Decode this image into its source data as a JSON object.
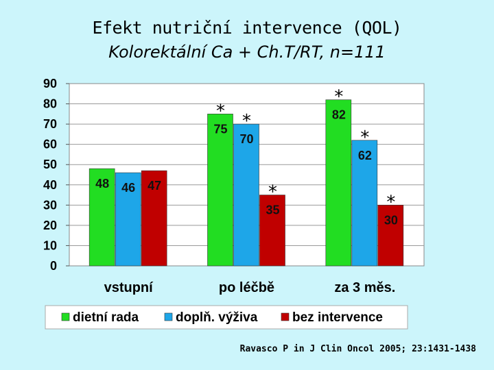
{
  "title": "Efekt nutriční intervence (QOL)",
  "subtitle": "Kolorektální Ca + Ch.T/RT, n=111",
  "citation": "Ravasco P in J Clin Oncol 2005; 23:1431-1438",
  "chart_data": {
    "type": "bar",
    "categories": [
      "vstupní",
      "po léčbě",
      "za 3 měs."
    ],
    "series": [
      {
        "name": "dietní rada",
        "color": "#22dd22",
        "values": [
          48,
          75,
          82
        ],
        "significant": [
          false,
          true,
          true
        ]
      },
      {
        "name": "doplň. výživa",
        "color": "#1ea6e8",
        "values": [
          46,
          70,
          62
        ],
        "significant": [
          false,
          true,
          true
        ]
      },
      {
        "name": "bez intervence",
        "color": "#c00000",
        "values": [
          47,
          35,
          30
        ],
        "significant": [
          false,
          true,
          true
        ]
      }
    ],
    "significance_marker": "*",
    "ylim": [
      0,
      90
    ],
    "yticks": [
      0,
      10,
      20,
      30,
      40,
      50,
      60,
      70,
      80,
      90
    ],
    "grid": true,
    "legend_position": "bottom"
  }
}
